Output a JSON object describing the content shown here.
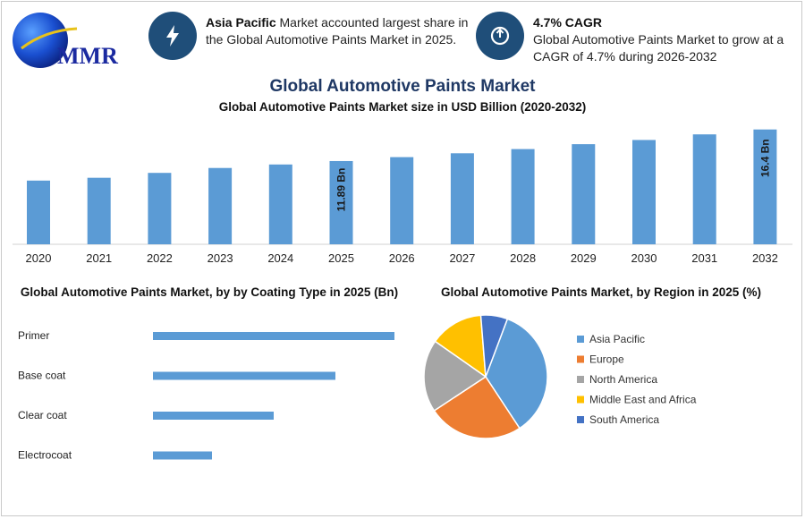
{
  "logo": {
    "text": "MMR"
  },
  "highlights": [
    {
      "bold": "Asia Pacific",
      "text": " Market accounted largest share in the Global Automotive Paints Market in 2025."
    },
    {
      "bold": "4.7% CAGR",
      "text": "Global Automotive Paints Market to grow at a CAGR of 4.7% during 2026-2032"
    }
  ],
  "title": "Global Automotive Paints Market",
  "colors": {
    "bar": "#5b9bd5",
    "icon_bg": "#1f4e79",
    "title": "#1f3864"
  },
  "chart_data": [
    {
      "type": "bar",
      "title": "Global Automotive Paints Market size in USD Billion (2020-2032)",
      "categories": [
        "2020",
        "2021",
        "2022",
        "2023",
        "2024",
        "2025",
        "2026",
        "2027",
        "2028",
        "2029",
        "2030",
        "2031",
        "2032"
      ],
      "values": [
        9.1,
        9.5,
        10.2,
        10.9,
        11.4,
        11.89,
        12.45,
        13.0,
        13.6,
        14.3,
        14.9,
        15.7,
        16.4
      ],
      "data_labels": {
        "5": "11.89 Bn",
        "12": "16.4 Bn"
      },
      "ylim": [
        0,
        17
      ]
    },
    {
      "type": "bar",
      "orientation": "horizontal",
      "title": "Global Automotive Paints Market, by by Coating Type in 2025 (Bn)",
      "categories": [
        "Primer",
        "Base coat",
        "Clear coat",
        "Electrocoat"
      ],
      "values": [
        4.5,
        3.4,
        2.25,
        1.1
      ],
      "xlim": [
        0,
        4.5
      ]
    },
    {
      "type": "pie",
      "title": "Global Automotive Paints Market, by Region in 2025 (%)",
      "categories": [
        "Asia Pacific",
        "Europe",
        "North America",
        "Middle East and Africa",
        "South America"
      ],
      "values": [
        35,
        25,
        19,
        14,
        7
      ],
      "colors": [
        "#5b9bd5",
        "#ed7d31",
        "#a5a5a5",
        "#ffc000",
        "#4472c4"
      ],
      "legend_position": "right"
    }
  ]
}
